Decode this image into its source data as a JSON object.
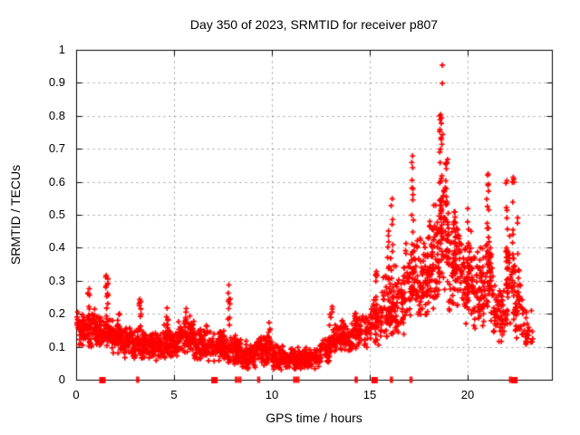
{
  "chart_data": {
    "type": "scatter",
    "title": "Day 350 of 2023, SRMTID for receiver p807",
    "xlabel": "GPS time / hours",
    "ylabel": "SRMTID / TECUs",
    "xlim": [
      0,
      24.3
    ],
    "ylim": [
      0,
      1
    ],
    "grid": true,
    "legend": false,
    "xtick_values": [
      0,
      5,
      10,
      15,
      20
    ],
    "xtick_labels": [
      "0",
      "5",
      "10",
      "15",
      "20"
    ],
    "ytick_values": [
      0,
      0.1,
      0.2,
      0.3,
      0.4,
      0.5,
      0.6,
      0.7,
      0.8,
      0.9,
      1
    ],
    "ytick_labels": [
      "0",
      "0.1",
      "0.2",
      "0.3",
      "0.4",
      "0.5",
      "0.6",
      "0.7",
      "0.8",
      "0.9",
      "1"
    ],
    "marker": {
      "symbol": "plus",
      "color": "#ff0000",
      "size": 7
    },
    "bands": [
      {
        "x0": 0.0,
        "x1": 0.5,
        "n": 55,
        "y0": 0.1,
        "y1": 0.21
      },
      {
        "x0": 0.5,
        "x1": 1.0,
        "n": 55,
        "y0": 0.095,
        "y1": 0.22
      },
      {
        "x0": 1.0,
        "x1": 1.6,
        "n": 70,
        "y0": 0.09,
        "y1": 0.2
      },
      {
        "x0": 1.6,
        "x1": 2.2,
        "n": 70,
        "y0": 0.08,
        "y1": 0.19
      },
      {
        "x0": 2.2,
        "x1": 2.9,
        "n": 75,
        "y0": 0.06,
        "y1": 0.17
      },
      {
        "x0": 2.9,
        "x1": 3.6,
        "n": 75,
        "y0": 0.05,
        "y1": 0.17
      },
      {
        "x0": 3.6,
        "x1": 4.4,
        "n": 85,
        "y0": 0.05,
        "y1": 0.15
      },
      {
        "x0": 4.4,
        "x1": 5.2,
        "n": 80,
        "y0": 0.06,
        "y1": 0.17
      },
      {
        "x0": 5.2,
        "x1": 6.0,
        "n": 85,
        "y0": 0.07,
        "y1": 0.19
      },
      {
        "x0": 6.0,
        "x1": 6.8,
        "n": 80,
        "y0": 0.05,
        "y1": 0.17
      },
      {
        "x0": 6.8,
        "x1": 7.6,
        "n": 80,
        "y0": 0.05,
        "y1": 0.16
      },
      {
        "x0": 7.6,
        "x1": 8.4,
        "n": 75,
        "y0": 0.04,
        "y1": 0.14
      },
      {
        "x0": 8.4,
        "x1": 9.2,
        "n": 80,
        "y0": 0.03,
        "y1": 0.12
      },
      {
        "x0": 9.2,
        "x1": 10.0,
        "n": 80,
        "y0": 0.04,
        "y1": 0.14
      },
      {
        "x0": 10.0,
        "x1": 10.8,
        "n": 80,
        "y0": 0.03,
        "y1": 0.11
      },
      {
        "x0": 10.8,
        "x1": 11.6,
        "n": 85,
        "y0": 0.03,
        "y1": 0.1
      },
      {
        "x0": 11.6,
        "x1": 12.4,
        "n": 90,
        "y0": 0.03,
        "y1": 0.1
      },
      {
        "x0": 12.4,
        "x1": 12.9,
        "n": 45,
        "y0": 0.05,
        "y1": 0.13
      },
      {
        "x0": 12.9,
        "x1": 13.4,
        "n": 45,
        "y0": 0.07,
        "y1": 0.17
      },
      {
        "x0": 13.4,
        "x1": 14.1,
        "n": 60,
        "y0": 0.08,
        "y1": 0.18
      },
      {
        "x0": 14.1,
        "x1": 15.0,
        "n": 65,
        "y0": 0.09,
        "y1": 0.2
      },
      {
        "x0": 15.0,
        "x1": 15.6,
        "n": 50,
        "y0": 0.1,
        "y1": 0.25
      },
      {
        "x0": 15.6,
        "x1": 16.2,
        "n": 55,
        "y0": 0.12,
        "y1": 0.32
      },
      {
        "x0": 16.2,
        "x1": 16.8,
        "n": 60,
        "y0": 0.12,
        "y1": 0.38
      },
      {
        "x0": 16.8,
        "x1": 17.4,
        "n": 55,
        "y0": 0.15,
        "y1": 0.45
      },
      {
        "x0": 17.4,
        "x1": 18.0,
        "n": 70,
        "y0": 0.15,
        "y1": 0.45
      },
      {
        "x0": 18.0,
        "x1": 18.5,
        "n": 70,
        "y0": 0.18,
        "y1": 0.55
      },
      {
        "x0": 18.5,
        "x1": 19.0,
        "n": 60,
        "y0": 0.25,
        "y1": 0.62
      },
      {
        "x0": 19.0,
        "x1": 19.6,
        "n": 70,
        "y0": 0.2,
        "y1": 0.5
      },
      {
        "x0": 19.6,
        "x1": 20.2,
        "n": 65,
        "y0": 0.15,
        "y1": 0.48
      },
      {
        "x0": 20.2,
        "x1": 20.8,
        "n": 65,
        "y0": 0.12,
        "y1": 0.42
      },
      {
        "x0": 20.8,
        "x1": 21.3,
        "n": 50,
        "y0": 0.15,
        "y1": 0.45
      },
      {
        "x0": 21.3,
        "x1": 21.9,
        "n": 55,
        "y0": 0.1,
        "y1": 0.3
      },
      {
        "x0": 21.9,
        "x1": 22.4,
        "n": 45,
        "y0": 0.15,
        "y1": 0.45
      },
      {
        "x0": 22.4,
        "x1": 22.9,
        "n": 35,
        "y0": 0.1,
        "y1": 0.32
      },
      {
        "x0": 22.9,
        "x1": 23.3,
        "n": 20,
        "y0": 0.08,
        "y1": 0.22
      }
    ],
    "spikes": [
      {
        "x": 0.62,
        "y0": 0.17,
        "y1": 0.3,
        "n": 10
      },
      {
        "x": 1.55,
        "y0": 0.2,
        "y1": 0.335,
        "n": 12
      },
      {
        "x": 2.15,
        "y0": 0.14,
        "y1": 0.22,
        "n": 7
      },
      {
        "x": 3.25,
        "y0": 0.14,
        "y1": 0.25,
        "n": 9
      },
      {
        "x": 4.62,
        "y0": 0.13,
        "y1": 0.235,
        "n": 8
      },
      {
        "x": 5.55,
        "y0": 0.14,
        "y1": 0.22,
        "n": 7
      },
      {
        "x": 5.8,
        "y0": 0.13,
        "y1": 0.21,
        "n": 6
      },
      {
        "x": 7.78,
        "y0": 0.15,
        "y1": 0.29,
        "n": 10
      },
      {
        "x": 9.85,
        "y0": 0.1,
        "y1": 0.185,
        "n": 8
      },
      {
        "x": 13.0,
        "y0": 0.1,
        "y1": 0.225,
        "n": 10
      },
      {
        "x": 13.55,
        "y0": 0.1,
        "y1": 0.2,
        "n": 8
      },
      {
        "x": 14.25,
        "y0": 0.12,
        "y1": 0.28,
        "n": 10
      },
      {
        "x": 15.3,
        "y0": 0.12,
        "y1": 0.335,
        "n": 12
      },
      {
        "x": 15.9,
        "y0": 0.15,
        "y1": 0.5,
        "n": 12
      },
      {
        "x": 16.1,
        "y0": 0.2,
        "y1": 0.55,
        "n": 12
      },
      {
        "x": 17.15,
        "y0": 0.25,
        "y1": 0.68,
        "n": 14
      },
      {
        "x": 18.6,
        "y0": 0.45,
        "y1": 0.81,
        "n": 25
      },
      {
        "x": 18.9,
        "y0": 0.45,
        "y1": 0.7,
        "n": 10
      },
      {
        "x": 19.3,
        "y0": 0.3,
        "y1": 0.52,
        "n": 12
      },
      {
        "x": 20.0,
        "y0": 0.25,
        "y1": 0.52,
        "n": 10
      },
      {
        "x": 21.0,
        "y0": 0.25,
        "y1": 0.63,
        "n": 16
      },
      {
        "x": 21.98,
        "y0": 0.25,
        "y1": 0.6,
        "n": 16
      },
      {
        "x": 22.3,
        "y0": 0.3,
        "y1": 0.61,
        "n": 10
      },
      {
        "x": 22.55,
        "y0": 0.15,
        "y1": 0.52,
        "n": 12
      }
    ],
    "extreme_points": [
      [
        18.68,
        0.955
      ],
      [
        18.68,
        0.9
      ],
      [
        18.6,
        0.805
      ],
      [
        18.64,
        0.795
      ],
      [
        18.56,
        0.76
      ],
      [
        18.7,
        0.745
      ],
      [
        18.62,
        0.73
      ],
      [
        18.66,
        0.715
      ],
      [
        18.58,
        0.7
      ],
      [
        17.16,
        0.68
      ],
      [
        17.12,
        0.66
      ],
      [
        21.02,
        0.625
      ],
      [
        22.3,
        0.615
      ],
      [
        21.98,
        0.605
      ],
      [
        22.34,
        0.6
      ],
      [
        16.12,
        0.55
      ],
      [
        19.98,
        0.52
      ]
    ],
    "zero_markers": {
      "squares_x": [
        1.32,
        7.04,
        15.22,
        22.36
      ],
      "bars_x": [
        3.08,
        3.16,
        8.12,
        8.2,
        8.3,
        8.38,
        9.26,
        9.34,
        11.1,
        11.18,
        11.26,
        11.34,
        14.24,
        14.32,
        16.04,
        16.12,
        17.04,
        17.12,
        22.12,
        22.2
      ]
    }
  },
  "colors": {
    "background": "#ffffff",
    "axis": "#000000",
    "grid": "#9a9a9a",
    "data": "#ff0000",
    "text": "#000000"
  }
}
